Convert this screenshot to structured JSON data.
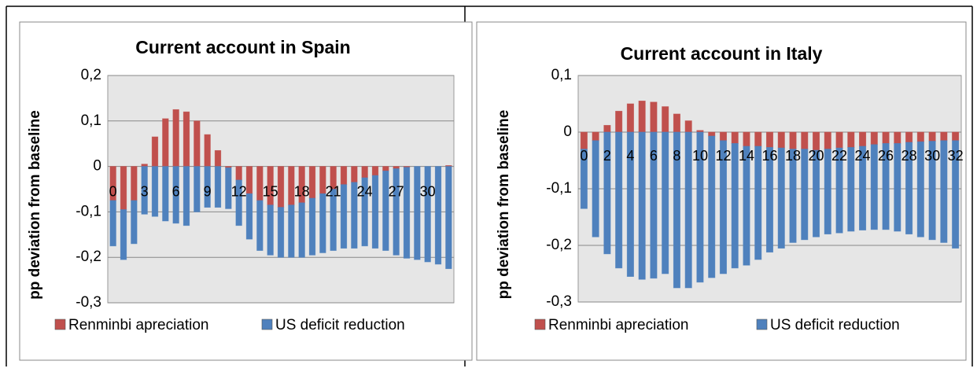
{
  "chart_data": [
    {
      "type": "bar",
      "stacked": true,
      "grid": true,
      "title": "Current account in Spain",
      "ylabel": "pp  deviation from baseline",
      "categories": [
        "0",
        null,
        null,
        "3",
        null,
        null,
        "6",
        null,
        null,
        "9",
        null,
        null,
        "12",
        null,
        null,
        "15",
        null,
        null,
        "18",
        null,
        null,
        "21",
        null,
        null,
        "24",
        null,
        null,
        "27",
        null,
        null,
        "30",
        null,
        null
      ],
      "series": [
        {
          "name": "Renminbi apreciation",
          "color": "#c0504d",
          "values": [
            -0.075,
            -0.095,
            -0.075,
            0.005,
            0.065,
            0.105,
            0.125,
            0.12,
            0.1,
            0.07,
            0.035,
            -0.003,
            -0.03,
            -0.06,
            -0.075,
            -0.085,
            -0.09,
            -0.085,
            -0.08,
            -0.07,
            -0.06,
            -0.05,
            -0.04,
            -0.035,
            -0.025,
            -0.02,
            -0.01,
            -0.005,
            -0.002,
            0,
            0,
            0,
            0.002
          ]
        },
        {
          "name": "US deficit reduction",
          "color": "#4f81bd",
          "values": [
            -0.1,
            -0.11,
            -0.095,
            -0.105,
            -0.11,
            -0.12,
            -0.125,
            -0.13,
            -0.1,
            -0.09,
            -0.09,
            -0.09,
            -0.1,
            -0.1,
            -0.11,
            -0.11,
            -0.11,
            -0.115,
            -0.12,
            -0.125,
            -0.13,
            -0.135,
            -0.14,
            -0.145,
            -0.15,
            -0.16,
            -0.175,
            -0.19,
            -0.2,
            -0.205,
            -0.21,
            -0.215,
            -0.225
          ]
        }
      ],
      "ylim": [
        -0.3,
        0.2
      ],
      "yticks": [
        {
          "value": -0.3,
          "label": "-0,3"
        },
        {
          "value": -0.2,
          "label": "-0,2"
        },
        {
          "value": -0.1,
          "label": "-0,1"
        },
        0,
        {
          "value": 0.1,
          "label": "0,1"
        },
        {
          "value": 0.2,
          "label": "0,2"
        }
      ]
    },
    {
      "type": "bar",
      "stacked": true,
      "grid": true,
      "title": "Current account in Italy",
      "ylabel": "pp  deviation from baseline",
      "categories": [
        "0",
        null,
        "2",
        null,
        "4",
        null,
        "6",
        null,
        "8",
        null,
        "10",
        null,
        "12",
        null,
        "14",
        null,
        "16",
        null,
        "18",
        null,
        "20",
        null,
        "22",
        null,
        "24",
        null,
        "26",
        null,
        "28",
        null,
        "30",
        null,
        "32"
      ],
      "series": [
        {
          "name": "Renminbi apreciation",
          "color": "#c0504d",
          "values": [
            -0.03,
            -0.015,
            0.012,
            0.037,
            0.05,
            0.055,
            0.053,
            0.045,
            0.032,
            0.02,
            0.003,
            -0.007,
            -0.015,
            -0.02,
            -0.025,
            -0.025,
            -0.027,
            -0.028,
            -0.03,
            -0.03,
            -0.032,
            -0.03,
            -0.028,
            -0.027,
            -0.025,
            -0.022,
            -0.02,
            -0.02,
            -0.018,
            -0.017,
            -0.016,
            -0.015,
            -0.015
          ]
        },
        {
          "name": "US deficit reduction",
          "color": "#4f81bd",
          "values": [
            -0.105,
            -0.17,
            -0.215,
            -0.24,
            -0.255,
            -0.26,
            -0.258,
            -0.25,
            -0.275,
            -0.275,
            -0.265,
            -0.25,
            -0.235,
            -0.22,
            -0.21,
            -0.2,
            -0.185,
            -0.177,
            -0.165,
            -0.16,
            -0.153,
            -0.15,
            -0.15,
            -0.148,
            -0.148,
            -0.15,
            -0.152,
            -0.155,
            -0.162,
            -0.168,
            -0.174,
            -0.18,
            -0.19
          ]
        }
      ],
      "ylim": [
        -0.3,
        0.1
      ],
      "yticks": [
        {
          "value": -0.3,
          "label": "-0,3"
        },
        {
          "value": -0.2,
          "label": "-0,2"
        },
        {
          "value": -0.1,
          "label": "-0,1"
        },
        0,
        {
          "value": 0.1,
          "label": "0,1"
        }
      ]
    }
  ]
}
